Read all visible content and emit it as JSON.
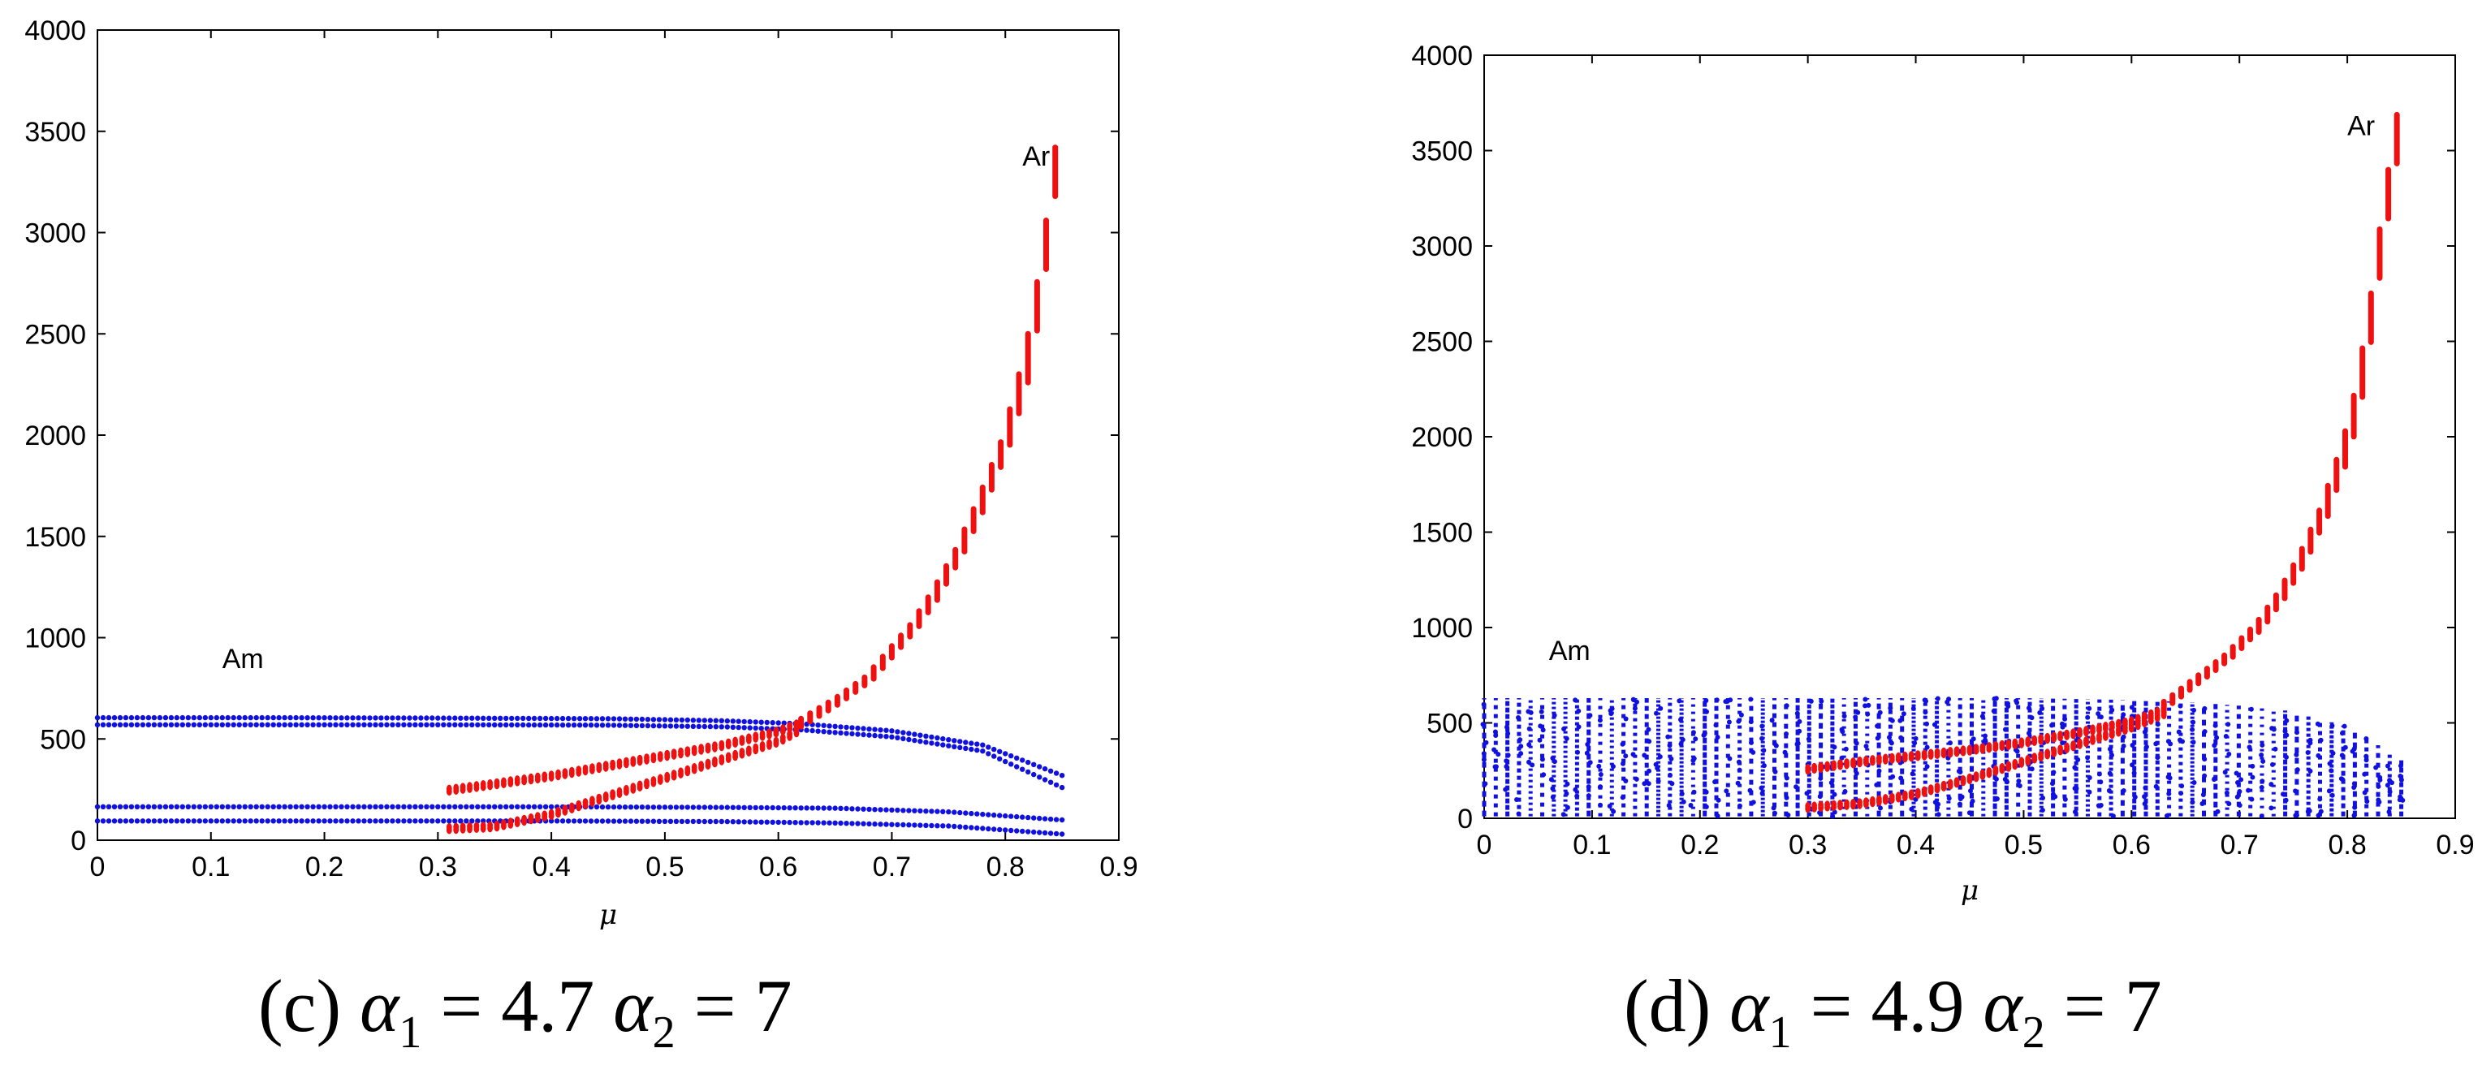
{
  "chart_data": [
    {
      "type": "scatter",
      "panel": "c",
      "xlabel": "μ",
      "ylabel": "",
      "xlim": [
        0,
        0.9
      ],
      "ylim": [
        0,
        4000
      ],
      "xticks": [
        "0",
        "0.1",
        "0.2",
        "0.3",
        "0.4",
        "0.5",
        "0.6",
        "0.7",
        "0.8",
        "0.9"
      ],
      "yticks": [
        "0",
        "500",
        "1000",
        "1500",
        "2000",
        "2500",
        "3000",
        "3500",
        "4000"
      ],
      "caption": {
        "tag": "(c)",
        "symbol": "α",
        "sub1": "1",
        "eq1": " = 4.7 ",
        "sub2": "2",
        "eq2": " = 7"
      },
      "annotations": [
        {
          "text": "Am",
          "x": 0.11,
          "y": 850
        },
        {
          "text": "Ar",
          "x": 0.815,
          "y": 3330
        }
      ],
      "series": [
        {
          "name": "Am",
          "color": "#1010e0",
          "style": "bands",
          "bands": [
            {
              "x": [
                0,
                0.15,
                0.3,
                0.45,
                0.55,
                0.62,
                0.7,
                0.78,
                0.85
              ],
              "y": [
                605,
                605,
                603,
                600,
                590,
                575,
                540,
                470,
                320
              ]
            },
            {
              "x": [
                0,
                0.15,
                0.3,
                0.45,
                0.55,
                0.62,
                0.7,
                0.78,
                0.85
              ],
              "y": [
                570,
                570,
                570,
                568,
                560,
                545,
                510,
                440,
                260
              ]
            },
            {
              "x": [
                0,
                0.2,
                0.4,
                0.55,
                0.65,
                0.75,
                0.85
              ],
              "y": [
                165,
                165,
                165,
                162,
                158,
                140,
                100
              ]
            },
            {
              "x": [
                0,
                0.2,
                0.4,
                0.55,
                0.65,
                0.75,
                0.85
              ],
              "y": [
                95,
                95,
                95,
                92,
                85,
                70,
                30
              ]
            }
          ]
        },
        {
          "name": "Ar",
          "color": "#f01010",
          "style": "curve",
          "upper": {
            "x": [
              0.31,
              0.35,
              0.4,
              0.45,
              0.5,
              0.55,
              0.6,
              0.62
            ],
            "y": [
              240,
              270,
              310,
              360,
              410,
              460,
              530,
              570
            ]
          },
          "lower": {
            "x": [
              0.31,
              0.35,
              0.4,
              0.45,
              0.5,
              0.55,
              0.6,
              0.62
            ],
            "y": [
              50,
              60,
              120,
              210,
              300,
              390,
              480,
              540
            ]
          },
          "main": {
            "x": [
              0.62,
              0.65,
              0.68,
              0.7,
              0.72,
              0.74,
              0.76,
              0.78,
              0.8,
              0.81,
              0.82,
              0.83,
              0.84,
              0.85
            ],
            "y": [
              580,
              680,
              800,
              930,
              1060,
              1230,
              1430,
              1680,
              1960,
              2160,
              2380,
              2700,
              3100,
              3600
            ]
          }
        }
      ]
    },
    {
      "type": "scatter",
      "panel": "d",
      "xlabel": "μ",
      "ylabel": "",
      "xlim": [
        0,
        0.9
      ],
      "ylim": [
        0,
        4000
      ],
      "xticks": [
        "0",
        "0.1",
        "0.2",
        "0.3",
        "0.4",
        "0.5",
        "0.6",
        "0.7",
        "0.8",
        "0.9"
      ],
      "yticks": [
        "0",
        "500",
        "1000",
        "1500",
        "2000",
        "2500",
        "3000",
        "3500",
        "4000"
      ],
      "caption": {
        "tag": "(d)",
        "symbol": "α",
        "sub1": "1",
        "eq1": " = 4.9 ",
        "sub2": "2",
        "eq2": " = 7"
      },
      "annotations": [
        {
          "text": "Am",
          "x": 0.06,
          "y": 830
        },
        {
          "text": "Ar",
          "x": 0.8,
          "y": 3580
        }
      ],
      "series": [
        {
          "name": "Am",
          "color": "#1010e0",
          "style": "columns",
          "x_start": 0,
          "x_end": 0.85,
          "columns": 80,
          "top": {
            "x": [
              0,
              0.3,
              0.5,
              0.6,
              0.65,
              0.7,
              0.75,
              0.8,
              0.85
            ],
            "y": [
              630,
              630,
              630,
              620,
              610,
              590,
              560,
              480,
              310
            ]
          }
        },
        {
          "name": "Ar",
          "color": "#f01010",
          "style": "curve",
          "upper": {
            "x": [
              0.3,
              0.35,
              0.4,
              0.45,
              0.5,
              0.55,
              0.6,
              0.63
            ],
            "y": [
              250,
              290,
              320,
              350,
              390,
              440,
              500,
              560
            ]
          },
          "lower": {
            "x": [
              0.3,
              0.35,
              0.4,
              0.45,
              0.5,
              0.55,
              0.6,
              0.63
            ],
            "y": [
              50,
              70,
              120,
              200,
              290,
              380,
              470,
              540
            ]
          },
          "main": {
            "x": [
              0.63,
              0.66,
              0.69,
              0.72,
              0.74,
              0.76,
              0.78,
              0.8,
              0.81,
              0.82,
              0.83,
              0.84,
              0.85
            ],
            "y": [
              590,
              720,
              850,
              1020,
              1180,
              1380,
              1630,
              1970,
              2200,
              2540,
              2960,
              3350,
              3700
            ]
          }
        }
      ]
    }
  ]
}
